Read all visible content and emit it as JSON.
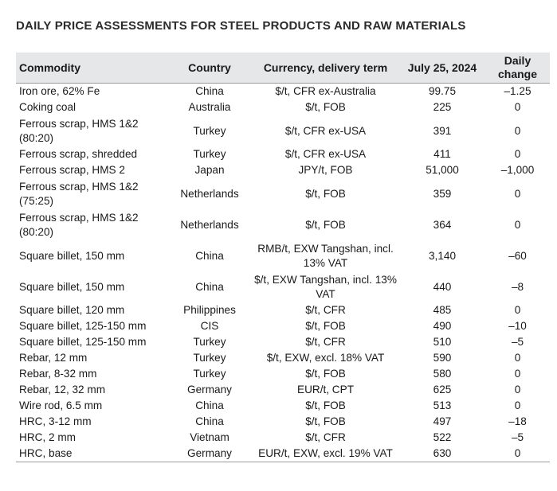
{
  "title": "DAILY PRICE ASSESSMENTS FOR STEEL PRODUCTS AND RAW MATERIALS",
  "headers": {
    "commodity": "Commodity",
    "country": "Country",
    "currency": "Currency, delivery term",
    "date": "July 25, 2024",
    "change_line1": "Daily",
    "change_line2": "change"
  },
  "rows": [
    {
      "commodity": "Iron ore, 62% Fe",
      "country": "China",
      "term": "$/t, CFR ex-Australia",
      "price": "99.75",
      "change": "–1.25"
    },
    {
      "commodity": "Coking coal",
      "country": "Australia",
      "term": "$/t, FOB",
      "price": "225",
      "change": "0"
    },
    {
      "commodity": "Ferrous scrap, HMS 1&2 (80:20)",
      "country": "Turkey",
      "term": "$/t, CFR ex-USA",
      "price": "391",
      "change": "0",
      "tall": true
    },
    {
      "commodity": "Ferrous scrap, shredded",
      "country": "Turkey",
      "term": "$/t, CFR ex-USA",
      "price": "411",
      "change": "0"
    },
    {
      "commodity": "Ferrous scrap, HMS 2",
      "country": "Japan",
      "term": "JPY/t, FOB",
      "price": "51,000",
      "change": "–1,000"
    },
    {
      "commodity": "Ferrous scrap, HMS 1&2 (75:25)",
      "country": "Netherlands",
      "term": "$/t, FOB",
      "price": "359",
      "change": "0",
      "tall": true
    },
    {
      "commodity": "Ferrous scrap, HMS 1&2 (80:20)",
      "country": "Netherlands",
      "term": "$/t, FOB",
      "price": "364",
      "change": "0",
      "tall": true
    },
    {
      "commodity": "Square billet, 150 mm",
      "country": "China",
      "term": "RMB/t, EXW Tangshan, incl. 13% VAT",
      "price": "3,140",
      "change": "–60",
      "tall": true
    },
    {
      "commodity": "Square billet, 150 mm",
      "country": "China",
      "term": "$/t, EXW Tangshan, incl. 13% VAT",
      "price": "440",
      "change": "–8",
      "tall": true
    },
    {
      "commodity": "Square billet, 120 mm",
      "country": "Philippines",
      "term": "$/t, CFR",
      "price": "485",
      "change": "0"
    },
    {
      "commodity": "Square billet, 125-150 mm",
      "country": "CIS",
      "term": "$/t, FOB",
      "price": "490",
      "change": "–10"
    },
    {
      "commodity": "Square billet, 125-150 mm",
      "country": "Turkey",
      "term": "$/t, CFR",
      "price": "510",
      "change": "–5"
    },
    {
      "commodity": "Rebar, 12 mm",
      "country": "Turkey",
      "term": "$/t, EXW, excl. 18% VAT",
      "price": "590",
      "change": "0"
    },
    {
      "commodity": "Rebar, 8-32 mm",
      "country": "Turkey",
      "term": "$/t, FOB",
      "price": "580",
      "change": "0"
    },
    {
      "commodity": "Rebar, 12, 32 mm",
      "country": "Germany",
      "term": "EUR/t, CPT",
      "price": "625",
      "change": "0"
    },
    {
      "commodity": "Wire rod, 6.5 mm",
      "country": "China",
      "term": "$/t, FOB",
      "price": "513",
      "change": "0"
    },
    {
      "commodity": "HRC, 3-12 mm",
      "country": "China",
      "term": "$/t, FOB",
      "price": "497",
      "change": "–18"
    },
    {
      "commodity": "HRC, 2 mm",
      "country": "Vietnam",
      "term": "$/t, CFR",
      "price": "522",
      "change": "–5"
    },
    {
      "commodity": "HRC, base",
      "country": "Germany",
      "term": "EUR/t, EXW, excl. 19% VAT",
      "price": "630",
      "change": "0"
    }
  ]
}
